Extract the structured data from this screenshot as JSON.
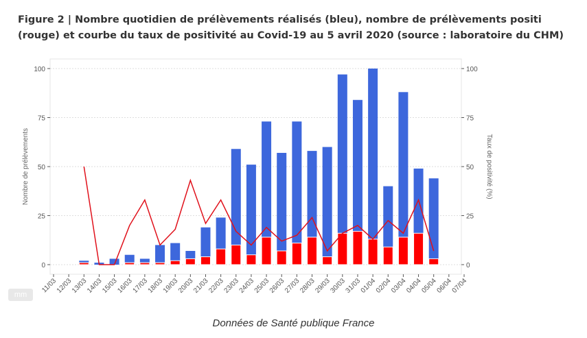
{
  "title": "Figure 2 | Nombre quotidien de prélèvements réalisés (bleu), nombre de prélèvements positi (rouge) et courbe du taux de positivité au Covid-19 au 5 avril 2020 (source : laboratoire du CHM)",
  "caption": "Données de Santé publique France",
  "badge": "mm",
  "chart_data": {
    "type": "bar",
    "categories": [
      "11/03",
      "12/03",
      "13/03",
      "14/03",
      "15/03",
      "16/03",
      "17/03",
      "18/03",
      "19/03",
      "20/03",
      "21/03",
      "22/03",
      "23/03",
      "24/03",
      "25/03",
      "26/03",
      "27/03",
      "28/03",
      "29/03",
      "30/03",
      "31/03",
      "01/04",
      "02/04",
      "03/04",
      "04/04",
      "05/04",
      "06/04",
      "07/04"
    ],
    "series": [
      {
        "kind": "bar",
        "color": "#3d67dc",
        "values": [
          0,
          0,
          2,
          1,
          3,
          5,
          3,
          10,
          11,
          7,
          19,
          24,
          59,
          51,
          73,
          57,
          73,
          58,
          60,
          97,
          84,
          100,
          40,
          88,
          49,
          44,
          0,
          0
        ]
      },
      {
        "kind": "bar",
        "color": "#ff0000",
        "values": [
          0,
          0,
          1,
          0,
          0,
          1,
          1,
          1,
          2,
          3,
          4,
          8,
          10,
          5,
          14,
          7,
          11,
          14,
          4,
          16,
          17,
          13,
          9,
          14,
          16,
          3,
          0,
          0
        ]
      },
      {
        "kind": "line",
        "axis": "right",
        "color": "#e0101a",
        "values": [
          null,
          null,
          50,
          0,
          0,
          20,
          33,
          10,
          18,
          43,
          21,
          33,
          17,
          10,
          19,
          12,
          15,
          24,
          7,
          16,
          20,
          13,
          22.5,
          16,
          33,
          7,
          null,
          null
        ]
      }
    ],
    "ylabel": "Nombre de prélèvements",
    "y2label": "Taux de positivité (%)",
    "ylim": [
      0,
      100
    ],
    "y2lim": [
      0,
      100
    ],
    "yticks": [
      0,
      25,
      50,
      75,
      100
    ],
    "grid": true
  }
}
